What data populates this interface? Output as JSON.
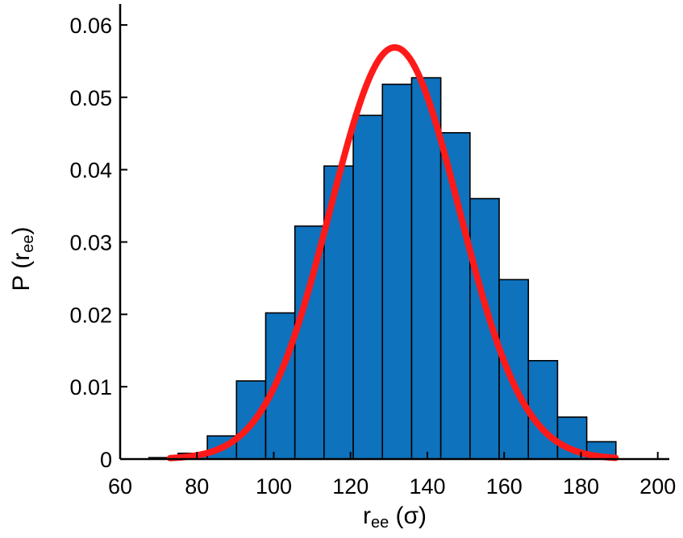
{
  "chart_data": {
    "type": "bar",
    "xlabel": {
      "main": "r",
      "sub": "ee",
      "suffix": " (σ)"
    },
    "ylabel": {
      "main": "P (r",
      "sub": "ee",
      "suffix": ")"
    },
    "xlim": [
      60,
      203
    ],
    "ylim": [
      0,
      0.062
    ],
    "xticks": [
      60,
      80,
      100,
      120,
      140,
      160,
      180,
      200
    ],
    "yticks": [
      0,
      0.01,
      0.02,
      0.03,
      0.04,
      0.05,
      0.06
    ],
    "ytick_labels": [
      "0",
      "0.01",
      "0.02",
      "0.03",
      "0.04",
      "0.05",
      "0.06"
    ],
    "bin_width": 7.6,
    "bins": [
      {
        "start": 67.5,
        "value": 0.0002
      },
      {
        "start": 75.1,
        "value": 0.0008
      },
      {
        "start": 82.7,
        "value": 0.0032
      },
      {
        "start": 90.3,
        "value": 0.0108
      },
      {
        "start": 97.9,
        "value": 0.0202
      },
      {
        "start": 105.5,
        "value": 0.0322
      },
      {
        "start": 113.1,
        "value": 0.0405
      },
      {
        "start": 120.7,
        "value": 0.0475
      },
      {
        "start": 128.3,
        "value": 0.0518
      },
      {
        "start": 135.9,
        "value": 0.0527
      },
      {
        "start": 143.5,
        "value": 0.0451
      },
      {
        "start": 151.1,
        "value": 0.036
      },
      {
        "start": 158.7,
        "value": 0.0248
      },
      {
        "start": 166.3,
        "value": 0.0136
      },
      {
        "start": 173.9,
        "value": 0.0058
      },
      {
        "start": 181.5,
        "value": 0.0024
      }
    ],
    "fit_curve": {
      "type": "gaussian",
      "mean": 131.5,
      "sigma": 16.8,
      "peak": 0.0569,
      "x_range": [
        73,
        189
      ]
    },
    "grid": false,
    "legend": "none",
    "colors": {
      "bar": "#0e72bd",
      "bar_edge": "#000000",
      "fit": "#ff1a1a"
    }
  }
}
